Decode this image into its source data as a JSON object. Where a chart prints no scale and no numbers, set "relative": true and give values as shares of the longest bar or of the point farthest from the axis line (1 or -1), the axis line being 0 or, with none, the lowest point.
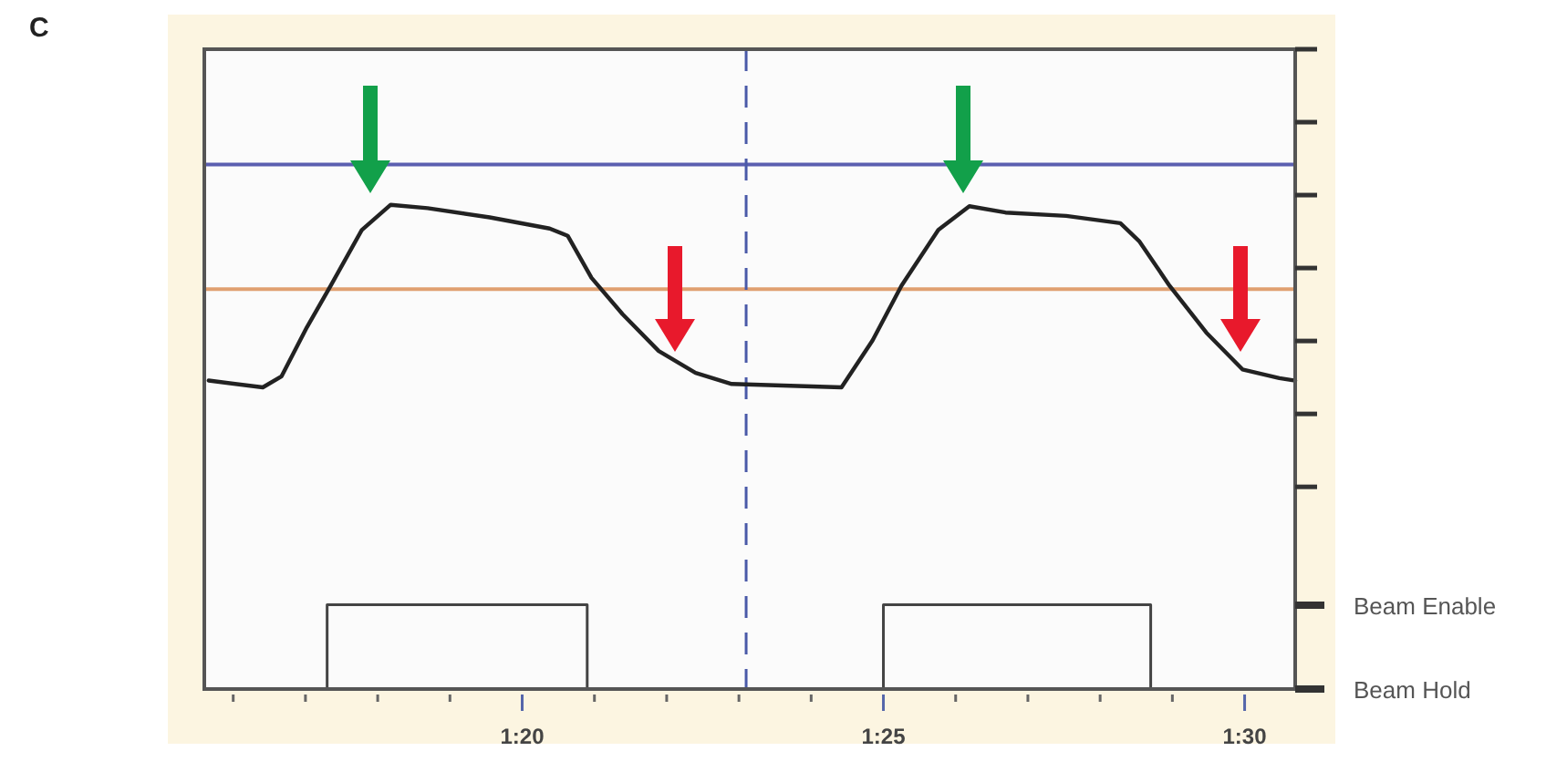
{
  "chart_data": {
    "type": "line",
    "title": "C",
    "relative": true,
    "xlim": [
      75.6,
      90.7
    ],
    "xticks": [
      {
        "value": 76,
        "label": null
      },
      {
        "value": 77,
        "label": null
      },
      {
        "value": 78,
        "label": null
      },
      {
        "value": 79,
        "label": null
      },
      {
        "value": 80,
        "label": "1:20"
      },
      {
        "value": 81,
        "label": null
      },
      {
        "value": 82,
        "label": null
      },
      {
        "value": 83,
        "label": null
      },
      {
        "value": 84,
        "label": null
      },
      {
        "value": 85,
        "label": "1:25"
      },
      {
        "value": 86,
        "label": null
      },
      {
        "value": 87,
        "label": null
      },
      {
        "value": 88,
        "label": null
      },
      {
        "value": 89,
        "label": null
      },
      {
        "value": 90,
        "label": "1:30"
      }
    ],
    "series": [
      {
        "color": "#222222",
        "x": [
          75.66,
          76.41,
          76.67,
          77.02,
          77.35,
          77.78,
          78.18,
          78.69,
          79.55,
          80.38,
          80.63,
          80.96,
          81.39,
          81.89,
          82.4,
          82.9,
          84.42,
          84.85,
          85.25,
          85.76,
          86.19,
          86.69,
          87.53,
          88.28,
          88.54,
          88.96,
          89.47,
          89.97,
          90.48,
          90.7
        ],
        "values": [
          0.637,
          0.623,
          0.646,
          0.747,
          0.833,
          0.948,
          1,
          0.993,
          0.974,
          0.951,
          0.936,
          0.849,
          0.774,
          0.698,
          0.653,
          0.63,
          0.623,
          0.72,
          0.833,
          0.948,
          0.997,
          0.984,
          0.977,
          0.962,
          0.925,
          0.833,
          0.736,
          0.66,
          0.642,
          0.637
        ]
      },
      {
        "type": "step",
        "color": "#444444",
        "x": [
          75.6,
          77.3,
          80.9,
          85.0,
          88.7,
          90.7
        ],
        "values": [
          0,
          0.174,
          0,
          0.174,
          0,
          0
        ]
      }
    ],
    "ref_lines": [
      {
        "axis": "y",
        "value": 1.083,
        "color": "#5b5fb0",
        "line_style": "solid"
      },
      {
        "axis": "y",
        "value": 0.826,
        "color": "#e0a070",
        "line_style": "solid"
      },
      {
        "axis": "x",
        "value": 83.1,
        "color": "#4a5aa8",
        "line_style": "dashed"
      }
    ],
    "annotations": [
      "Beam Enable",
      "Beam Hold"
    ]
  }
}
